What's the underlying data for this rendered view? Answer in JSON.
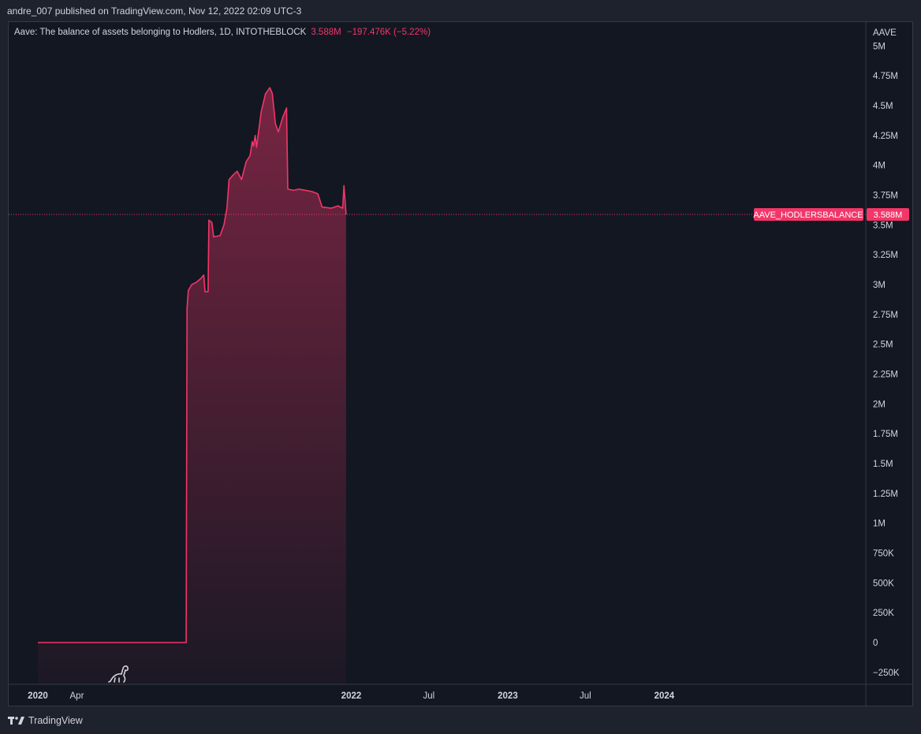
{
  "header": {
    "published": "andre_007 published on TradingView.com, Nov 12, 2022 02:09 UTC-3"
  },
  "legend": {
    "title": "Aave: The balance of assets belonging to Hodlers, 1D, INTOTHEBLOCK",
    "last": "3.588M",
    "change": "−197.476K (−5.22%)"
  },
  "footer": {
    "brand": "TradingView"
  },
  "colors": {
    "line": "#f23668",
    "background": "#131722",
    "axis_text": "#d1d4dc",
    "border": "#363a45"
  },
  "chart_data": {
    "type": "area",
    "y_axis_title": "AAVE",
    "series_label": "AAVE_HODLERSBALANCE",
    "last_value_label": "3.588M",
    "last_value": 3588000,
    "ylim": [
      -350000,
      5200000
    ],
    "y_ticks": [
      {
        "v": 5000000,
        "label": "5M"
      },
      {
        "v": 4750000,
        "label": "4.75M"
      },
      {
        "v": 4500000,
        "label": "4.5M"
      },
      {
        "v": 4250000,
        "label": "4.25M"
      },
      {
        "v": 4000000,
        "label": "4M"
      },
      {
        "v": 3750000,
        "label": "3.75M"
      },
      {
        "v": 3500000,
        "label": "3.5M"
      },
      {
        "v": 3250000,
        "label": "3.25M"
      },
      {
        "v": 3000000,
        "label": "3M"
      },
      {
        "v": 2750000,
        "label": "2.75M"
      },
      {
        "v": 2500000,
        "label": "2.5M"
      },
      {
        "v": 2250000,
        "label": "2.25M"
      },
      {
        "v": 2000000,
        "label": "2M"
      },
      {
        "v": 1750000,
        "label": "1.75M"
      },
      {
        "v": 1500000,
        "label": "1.5M"
      },
      {
        "v": 1250000,
        "label": "1.25M"
      },
      {
        "v": 1000000,
        "label": "1M"
      },
      {
        "v": 750000,
        "label": "750K"
      },
      {
        "v": 500000,
        "label": "500K"
      },
      {
        "v": 250000,
        "label": "250K"
      },
      {
        "v": 0,
        "label": "0"
      },
      {
        "v": -250000,
        "label": "−250K"
      }
    ],
    "xlim": [
      "2019-10-25",
      "2025-04-15"
    ],
    "x_ticks": [
      {
        "date": "2020-01-01",
        "label": "2020",
        "bold": true
      },
      {
        "date": "2020-04-01",
        "label": "Apr",
        "bold": false
      },
      {
        "date": "2022-01-01",
        "label": "2022",
        "bold": true
      },
      {
        "date": "2022-07-01",
        "label": "Jul",
        "bold": false
      },
      {
        "date": "2023-01-01",
        "label": "2023",
        "bold": true
      },
      {
        "date": "2023-07-01",
        "label": "Jul",
        "bold": false
      },
      {
        "date": "2024-01-01",
        "label": "2024",
        "bold": true
      }
    ],
    "series": [
      {
        "points": [
          [
            "2020-01-01",
            0
          ],
          [
            "2020-12-12",
            0
          ],
          [
            "2020-12-14",
            2800000
          ],
          [
            "2020-12-17",
            2950000
          ],
          [
            "2020-12-25",
            3000000
          ],
          [
            "2021-01-05",
            3020000
          ],
          [
            "2021-01-15",
            3050000
          ],
          [
            "2021-01-22",
            3080000
          ],
          [
            "2021-01-25",
            2940000
          ],
          [
            "2021-02-01",
            2940000
          ],
          [
            "2021-02-03",
            3540000
          ],
          [
            "2021-02-10",
            3520000
          ],
          [
            "2021-02-14",
            3400000
          ],
          [
            "2021-03-01",
            3410000
          ],
          [
            "2021-03-10",
            3500000
          ],
          [
            "2021-03-17",
            3640000
          ],
          [
            "2021-03-22",
            3880000
          ],
          [
            "2021-04-01",
            3920000
          ],
          [
            "2021-04-10",
            3950000
          ],
          [
            "2021-04-20",
            3880000
          ],
          [
            "2021-05-01",
            4030000
          ],
          [
            "2021-05-10",
            4080000
          ],
          [
            "2021-05-15",
            4200000
          ],
          [
            "2021-05-18",
            4160000
          ],
          [
            "2021-05-22",
            4250000
          ],
          [
            "2021-05-25",
            4150000
          ],
          [
            "2021-06-05",
            4450000
          ],
          [
            "2021-06-15",
            4600000
          ],
          [
            "2021-06-25",
            4650000
          ],
          [
            "2021-07-01",
            4600000
          ],
          [
            "2021-07-08",
            4350000
          ],
          [
            "2021-07-15",
            4280000
          ],
          [
            "2021-07-25",
            4400000
          ],
          [
            "2021-08-03",
            4480000
          ],
          [
            "2021-08-06",
            3800000
          ],
          [
            "2021-08-20",
            3790000
          ],
          [
            "2021-09-01",
            3800000
          ],
          [
            "2021-10-01",
            3780000
          ],
          [
            "2021-10-15",
            3760000
          ],
          [
            "2021-10-25",
            3650000
          ],
          [
            "2021-11-15",
            3640000
          ],
          [
            "2021-12-01",
            3660000
          ],
          [
            "2021-12-12",
            3640000
          ],
          [
            "2021-12-15",
            3830000
          ],
          [
            "2021-12-20",
            3588000
          ]
        ]
      }
    ]
  }
}
